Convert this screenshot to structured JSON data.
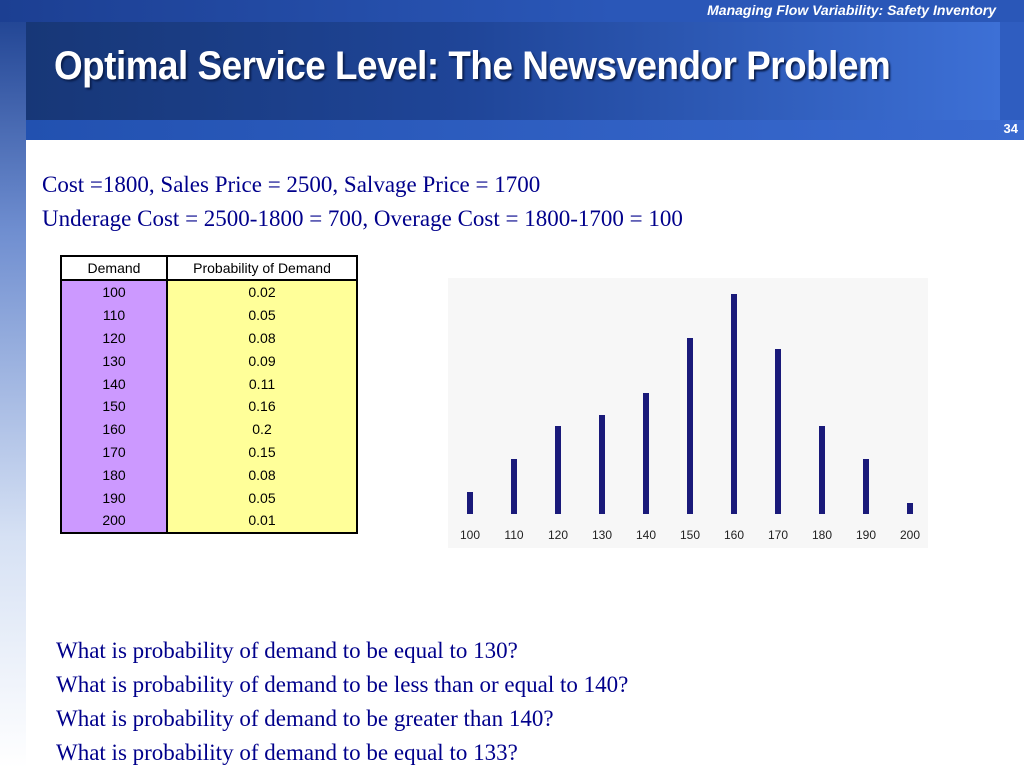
{
  "header": {
    "course_title": "Managing Flow Variability:  Safety Inventory",
    "slide_title": "Optimal Service Level:  The Newsvendor Problem",
    "slide_number": "34"
  },
  "intro": {
    "line1": "Cost =1800, Sales Price = 2500, Salvage Price = 1700",
    "line2": "Underage Cost = 2500-1800 = 700, Overage Cost = 1800-1700 = 100"
  },
  "table": {
    "headers": [
      "Demand",
      "Probability of Demand"
    ],
    "rows": [
      [
        "100",
        "0.02"
      ],
      [
        "110",
        "0.05"
      ],
      [
        "120",
        "0.08"
      ],
      [
        "130",
        "0.09"
      ],
      [
        "140",
        "0.11"
      ],
      [
        "150",
        "0.16"
      ],
      [
        "160",
        "0.2"
      ],
      [
        "170",
        "0.15"
      ],
      [
        "180",
        "0.08"
      ],
      [
        "190",
        "0.05"
      ],
      [
        "200",
        "0.01"
      ]
    ]
  },
  "chart_data": {
    "type": "bar",
    "categories": [
      "100",
      "110",
      "120",
      "130",
      "140",
      "150",
      "160",
      "170",
      "180",
      "190",
      "200"
    ],
    "values": [
      0.02,
      0.05,
      0.08,
      0.09,
      0.11,
      0.16,
      0.2,
      0.15,
      0.08,
      0.05,
      0.01
    ],
    "title": "",
    "xlabel": "",
    "ylabel": "",
    "ylim": [
      0,
      0.2
    ],
    "grid": false,
    "bar_color": "#1a1a7a"
  },
  "questions": [
    "What is probability of demand to be equal to 130?",
    "What is probability of demand to be less than or equal to 140?",
    "What is probability of demand to be greater than  140?",
    "What is probability of demand to be equal to 133?"
  ]
}
